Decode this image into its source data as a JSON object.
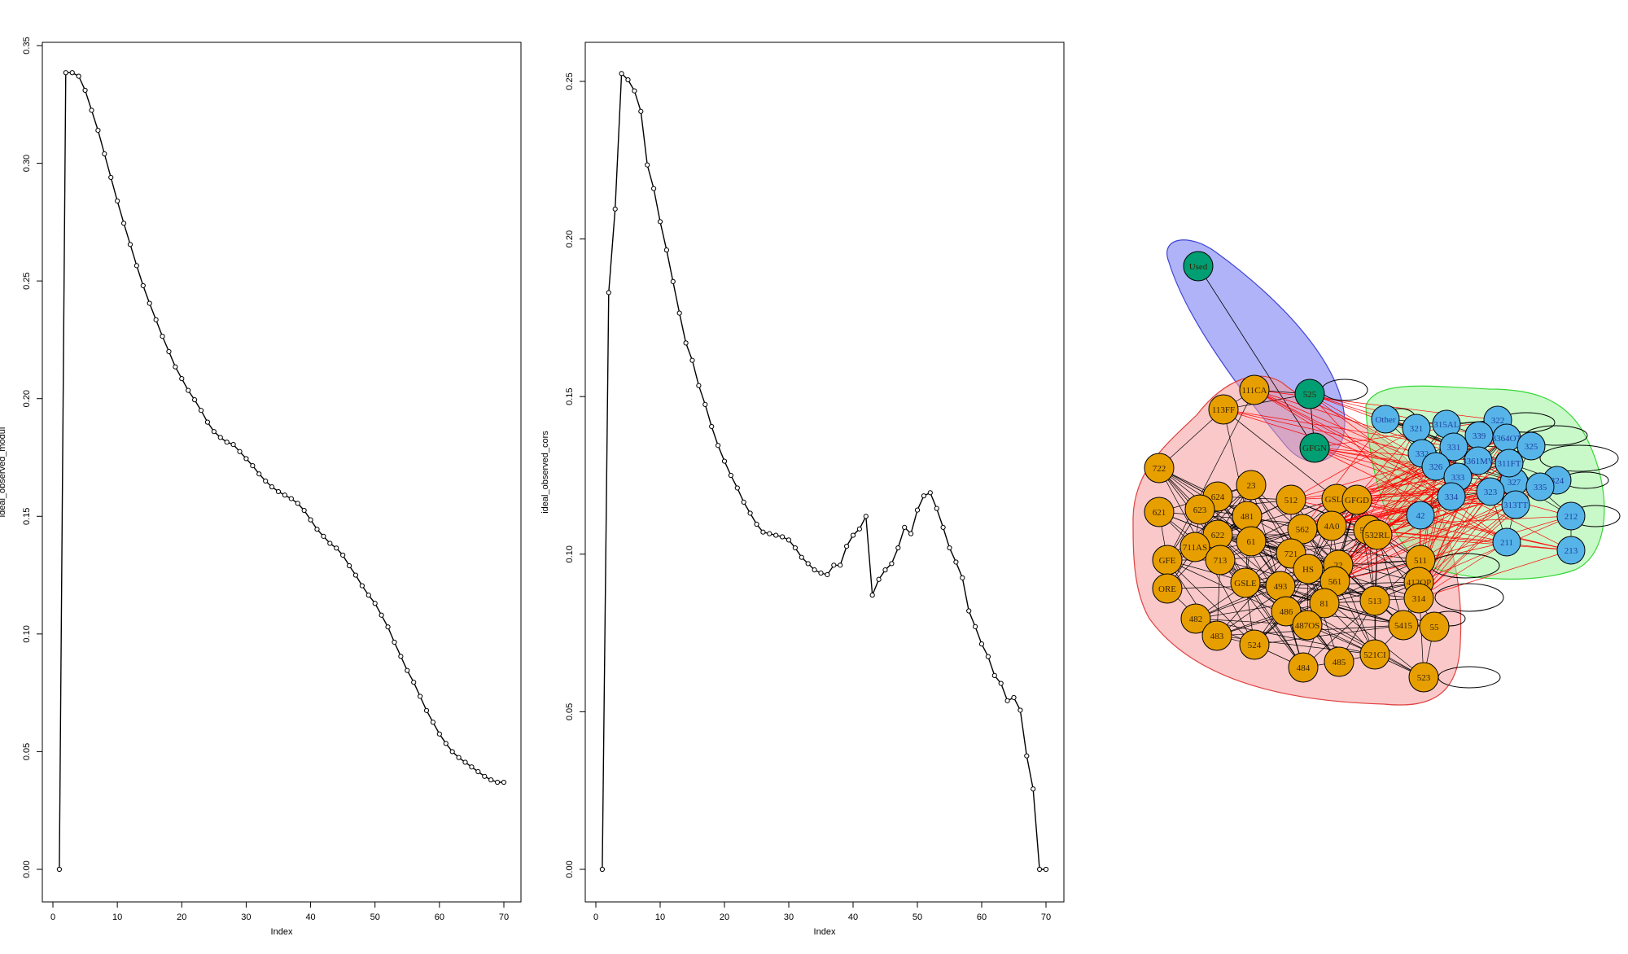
{
  "chart_data": [
    {
      "type": "line",
      "xlabel": "Index",
      "ylabel": "ideal_observed_modul",
      "xlim": [
        1,
        70
      ],
      "ylim": [
        0,
        0.35
      ],
      "xticks": [
        0,
        10,
        20,
        30,
        40,
        50,
        60,
        70
      ],
      "xtick_labels": [
        "0",
        "10",
        "20",
        "30",
        "40",
        "50",
        "60",
        "70"
      ],
      "yticks": [
        0,
        0.05,
        0.1,
        0.15,
        0.2,
        0.25,
        0.3,
        0.35
      ],
      "ytick_labels": [
        "0.00",
        "0.05",
        "0.10",
        "0.15",
        "0.20",
        "0.25",
        "0.30",
        "0.35"
      ],
      "markers": "open-circle",
      "x": [
        1,
        2,
        3,
        4,
        5,
        6,
        7,
        8,
        9,
        10,
        11,
        12,
        13,
        14,
        15,
        16,
        17,
        18,
        19,
        20,
        21,
        22,
        23,
        24,
        25,
        26,
        27,
        28,
        29,
        30,
        31,
        32,
        33,
        34,
        35,
        36,
        37,
        38,
        39,
        40,
        41,
        42,
        43,
        44,
        45,
        46,
        47,
        48,
        49,
        50,
        51,
        52,
        53,
        54,
        55,
        56,
        57,
        58,
        59,
        60,
        61,
        62,
        63,
        64,
        65,
        66,
        67,
        68,
        69,
        70
      ],
      "y": [
        0.0,
        0.3385,
        0.3385,
        0.337,
        0.331,
        0.3225,
        0.314,
        0.304,
        0.294,
        0.284,
        0.2745,
        0.2655,
        0.2565,
        0.248,
        0.2405,
        0.2335,
        0.2265,
        0.22,
        0.2135,
        0.2085,
        0.2035,
        0.1995,
        0.195,
        0.19,
        0.186,
        0.1835,
        0.1815,
        0.1805,
        0.1775,
        0.1745,
        0.1715,
        0.168,
        0.165,
        0.1625,
        0.1605,
        0.159,
        0.1575,
        0.1555,
        0.1525,
        0.1485,
        0.1445,
        0.1415,
        0.1385,
        0.1365,
        0.1335,
        0.129,
        0.125,
        0.1205,
        0.1165,
        0.113,
        0.108,
        0.103,
        0.0965,
        0.0905,
        0.0845,
        0.0795,
        0.0735,
        0.0675,
        0.0625,
        0.0575,
        0.0535,
        0.05,
        0.0475,
        0.0455,
        0.0435,
        0.0415,
        0.0395,
        0.038,
        0.037,
        0.037
      ]
    },
    {
      "type": "line",
      "xlabel": "Index",
      "ylabel": "ideal_observed_cors",
      "xlim": [
        1,
        70
      ],
      "ylim": [
        0,
        0.252
      ],
      "xticks": [
        0,
        10,
        20,
        30,
        40,
        50,
        60,
        70
      ],
      "xtick_labels": [
        "0",
        "10",
        "20",
        "30",
        "40",
        "50",
        "60",
        "70"
      ],
      "yticks": [
        0,
        0.05,
        0.1,
        0.15,
        0.2,
        0.25
      ],
      "ytick_labels": [
        "0.00",
        "0.05",
        "0.10",
        "0.15",
        "0.20",
        "0.25"
      ],
      "markers": "open-circle",
      "x": [
        1,
        2,
        3,
        4,
        5,
        6,
        7,
        8,
        9,
        10,
        11,
        12,
        13,
        14,
        15,
        16,
        17,
        18,
        19,
        20,
        21,
        22,
        23,
        24,
        25,
        26,
        27,
        28,
        29,
        30,
        31,
        32,
        33,
        34,
        35,
        36,
        37,
        38,
        39,
        40,
        41,
        42,
        43,
        44,
        45,
        46,
        47,
        48,
        49,
        50,
        51,
        52,
        53,
        54,
        55,
        56,
        57,
        58,
        59,
        60,
        61,
        62,
        63,
        64,
        65,
        66,
        67,
        68,
        69,
        70
      ],
      "y": [
        0.0,
        0.183,
        0.2095,
        0.2525,
        0.2505,
        0.247,
        0.2405,
        0.2235,
        0.216,
        0.2055,
        0.1965,
        0.1865,
        0.1765,
        0.167,
        0.1615,
        0.1535,
        0.1475,
        0.1405,
        0.1345,
        0.1295,
        0.125,
        0.121,
        0.1165,
        0.113,
        0.1095,
        0.107,
        0.1065,
        0.106,
        0.1055,
        0.1045,
        0.102,
        0.099,
        0.097,
        0.095,
        0.094,
        0.0935,
        0.0965,
        0.0965,
        0.1025,
        0.106,
        0.108,
        0.112,
        0.087,
        0.092,
        0.095,
        0.097,
        0.102,
        0.1085,
        0.1065,
        0.114,
        0.1185,
        0.1195,
        0.1145,
        0.1085,
        0.102,
        0.0975,
        0.0925,
        0.082,
        0.077,
        0.0715,
        0.0675,
        0.0615,
        0.059,
        0.0535,
        0.0545,
        0.0505,
        0.036,
        0.0255,
        0.0,
        0.0
      ]
    }
  ],
  "network": {
    "groups": [
      {
        "name": "blue",
        "fill": "#6f74f0",
        "stroke": "#3e43d8"
      },
      {
        "name": "red",
        "fill": "#f59a9a",
        "stroke": "#e04040"
      },
      {
        "name": "green",
        "fill": "#9cf29c",
        "stroke": "#36d836"
      }
    ],
    "colors": {
      "orange": "#e79f00",
      "blue": "#56b4e9",
      "green": "#009e73",
      "red_edge": "#ff0000",
      "black_edge": "#000000"
    },
    "nodes": [
      {
        "label": "Used",
        "group": "green"
      },
      {
        "label": "525",
        "group": "green"
      },
      {
        "label": "GFGN",
        "group": "green"
      },
      {
        "label": "111CA",
        "group": "orange"
      },
      {
        "label": "113FF",
        "group": "orange"
      },
      {
        "label": "722",
        "group": "orange"
      },
      {
        "label": "621",
        "group": "orange"
      },
      {
        "label": "624",
        "group": "orange"
      },
      {
        "label": "23",
        "group": "orange"
      },
      {
        "label": "623",
        "group": "orange"
      },
      {
        "label": "481",
        "group": "orange"
      },
      {
        "label": "512",
        "group": "orange"
      },
      {
        "label": "GSLG",
        "group": "orange"
      },
      {
        "label": "GFGD",
        "group": "orange"
      },
      {
        "label": "622",
        "group": "orange"
      },
      {
        "label": "562",
        "group": "orange"
      },
      {
        "label": "4A0",
        "group": "orange"
      },
      {
        "label": "5411",
        "group": "orange"
      },
      {
        "label": "532RL",
        "group": "orange"
      },
      {
        "label": "61",
        "group": "orange"
      },
      {
        "label": "711AS",
        "group": "orange"
      },
      {
        "label": "GFE",
        "group": "orange"
      },
      {
        "label": "713",
        "group": "orange"
      },
      {
        "label": "721",
        "group": "orange"
      },
      {
        "label": "HS",
        "group": "orange"
      },
      {
        "label": "22",
        "group": "orange"
      },
      {
        "label": "511",
        "group": "orange"
      },
      {
        "label": "561",
        "group": "orange"
      },
      {
        "label": "GSLE",
        "group": "orange"
      },
      {
        "label": "493",
        "group": "orange"
      },
      {
        "label": "ORE",
        "group": "orange"
      },
      {
        "label": "412OP",
        "group": "orange"
      },
      {
        "label": "81",
        "group": "orange"
      },
      {
        "label": "513",
        "group": "orange"
      },
      {
        "label": "314",
        "group": "orange"
      },
      {
        "label": "486",
        "group": "orange"
      },
      {
        "label": "482",
        "group": "orange"
      },
      {
        "label": "487OS",
        "group": "orange"
      },
      {
        "label": "483",
        "group": "orange"
      },
      {
        "label": "5415",
        "group": "orange"
      },
      {
        "label": "55",
        "group": "orange"
      },
      {
        "label": "524",
        "group": "orange"
      },
      {
        "label": "521CI",
        "group": "orange"
      },
      {
        "label": "484",
        "group": "orange"
      },
      {
        "label": "485",
        "group": "orange"
      },
      {
        "label": "523",
        "group": "orange"
      },
      {
        "label": "Other",
        "group": "blue"
      },
      {
        "label": "321",
        "group": "blue"
      },
      {
        "label": "315AL",
        "group": "blue"
      },
      {
        "label": "322",
        "group": "blue"
      },
      {
        "label": "339",
        "group": "blue"
      },
      {
        "label": "3364OT",
        "group": "blue"
      },
      {
        "label": "331",
        "group": "blue"
      },
      {
        "label": "325",
        "group": "blue"
      },
      {
        "label": "332",
        "group": "blue"
      },
      {
        "label": "3361MV",
        "group": "blue"
      },
      {
        "label": "327",
        "group": "blue"
      },
      {
        "label": "311FT",
        "group": "blue"
      },
      {
        "label": "326",
        "group": "blue"
      },
      {
        "label": "333",
        "group": "blue"
      },
      {
        "label": "324",
        "group": "blue"
      },
      {
        "label": "323",
        "group": "blue"
      },
      {
        "label": "334",
        "group": "blue"
      },
      {
        "label": "335",
        "group": "blue"
      },
      {
        "label": "313TT",
        "group": "blue"
      },
      {
        "label": "42",
        "group": "blue"
      },
      {
        "label": "212",
        "group": "blue"
      },
      {
        "label": "211",
        "group": "blue"
      },
      {
        "label": "213",
        "group": "blue"
      }
    ]
  }
}
